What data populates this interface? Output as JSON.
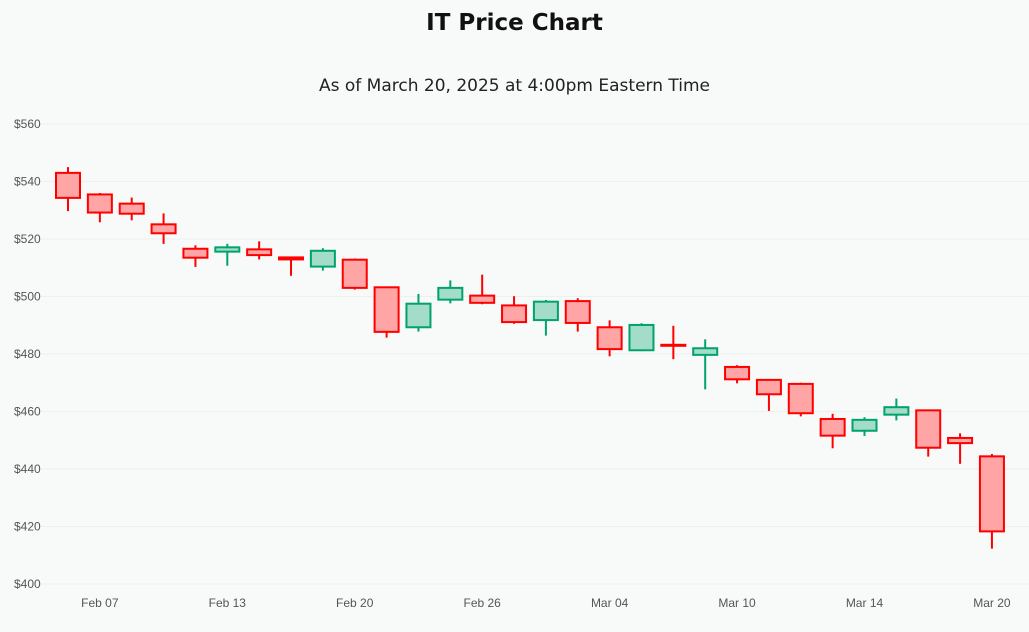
{
  "chart_data": {
    "type": "candlestick",
    "title": "IT Price Chart",
    "subtitle": "As of March 20, 2025 at 4:00pm Eastern Time",
    "ylim": [
      400,
      560
    ],
    "yticks": [
      400,
      420,
      440,
      460,
      480,
      500,
      520,
      540,
      560
    ],
    "ytick_labels": [
      "$400",
      "$420",
      "$440",
      "$460",
      "$480",
      "$500",
      "$520",
      "$540",
      "$560"
    ],
    "xtick_labels": [
      {
        "index": 1,
        "label": "Feb 07"
      },
      {
        "index": 5,
        "label": "Feb 13"
      },
      {
        "index": 9,
        "label": "Feb 20"
      },
      {
        "index": 13,
        "label": "Feb 26"
      },
      {
        "index": 17,
        "label": "Mar 04"
      },
      {
        "index": 21,
        "label": "Mar 10"
      },
      {
        "index": 25,
        "label": "Mar 14"
      },
      {
        "index": 29,
        "label": "Mar 20"
      }
    ],
    "colors": {
      "up_stroke": "#00a36c",
      "up_fill": "#a3dcc8",
      "down_stroke": "#ff0000",
      "down_fill": "#ffa5a5"
    },
    "candles": [
      {
        "date": "Feb 06",
        "o": 543.0,
        "h": 545.0,
        "l": 529.7,
        "c": 534.3
      },
      {
        "date": "Feb 07",
        "o": 535.5,
        "h": 536.0,
        "l": 525.8,
        "c": 529.2
      },
      {
        "date": "Feb 10",
        "o": 532.3,
        "h": 534.4,
        "l": 526.5,
        "c": 528.8
      },
      {
        "date": "Feb 11",
        "o": 525.1,
        "h": 528.9,
        "l": 518.3,
        "c": 522.0
      },
      {
        "date": "Feb 12",
        "o": 516.6,
        "h": 517.8,
        "l": 510.3,
        "c": 513.5
      },
      {
        "date": "Feb 13",
        "o": 515.6,
        "h": 518.3,
        "l": 510.7,
        "c": 517.1
      },
      {
        "date": "Feb 14",
        "o": 516.4,
        "h": 519.2,
        "l": 512.9,
        "c": 514.4
      },
      {
        "date": "Feb 18",
        "o": 513.6,
        "h": 513.7,
        "l": 507.2,
        "c": 512.9
      },
      {
        "date": "Feb 19",
        "o": 510.4,
        "h": 516.8,
        "l": 509.0,
        "c": 515.9
      },
      {
        "date": "Feb 20",
        "o": 512.8,
        "h": 513.2,
        "l": 502.4,
        "c": 503.0
      },
      {
        "date": "Feb 21",
        "o": 503.2,
        "h": 503.2,
        "l": 485.7,
        "c": 487.7
      },
      {
        "date": "Feb 24",
        "o": 489.3,
        "h": 500.9,
        "l": 487.8,
        "c": 497.5
      },
      {
        "date": "Feb 25",
        "o": 498.9,
        "h": 505.6,
        "l": 497.6,
        "c": 503.0
      },
      {
        "date": "Feb 26",
        "o": 500.3,
        "h": 507.6,
        "l": 497.3,
        "c": 497.8
      },
      {
        "date": "Feb 27",
        "o": 496.9,
        "h": 500.1,
        "l": 490.5,
        "c": 491.1
      },
      {
        "date": "Feb 28",
        "o": 491.8,
        "h": 498.8,
        "l": 486.4,
        "c": 498.2
      },
      {
        "date": "Mar 03",
        "o": 498.4,
        "h": 499.4,
        "l": 487.8,
        "c": 490.8
      },
      {
        "date": "Mar 04",
        "o": 489.3,
        "h": 491.7,
        "l": 479.2,
        "c": 481.7
      },
      {
        "date": "Mar 05",
        "o": 481.3,
        "h": 490.7,
        "l": 481.0,
        "c": 490.1
      },
      {
        "date": "Mar 06",
        "o": 483.2,
        "h": 489.8,
        "l": 478.2,
        "c": 482.9
      },
      {
        "date": "Mar 07",
        "o": 479.7,
        "h": 485.1,
        "l": 467.7,
        "c": 482.0
      },
      {
        "date": "Mar 10",
        "o": 475.5,
        "h": 476.1,
        "l": 469.8,
        "c": 471.2
      },
      {
        "date": "Mar 11",
        "o": 471.0,
        "h": 471.2,
        "l": 460.2,
        "c": 466.0
      },
      {
        "date": "Mar 12",
        "o": 469.6,
        "h": 470.0,
        "l": 458.3,
        "c": 459.4
      },
      {
        "date": "Mar 13",
        "o": 457.4,
        "h": 459.2,
        "l": 447.2,
        "c": 451.6
      },
      {
        "date": "Mar 14",
        "o": 453.3,
        "h": 458.0,
        "l": 451.5,
        "c": 457.1
      },
      {
        "date": "Mar 17",
        "o": 458.9,
        "h": 464.5,
        "l": 456.9,
        "c": 461.5
      },
      {
        "date": "Mar 18",
        "o": 460.4,
        "h": 460.4,
        "l": 444.3,
        "c": 447.4
      },
      {
        "date": "Mar 19",
        "o": 450.8,
        "h": 452.4,
        "l": 441.8,
        "c": 449.0
      },
      {
        "date": "Mar 20",
        "o": 444.4,
        "h": 445.2,
        "l": 412.3,
        "c": 418.3
      }
    ]
  }
}
